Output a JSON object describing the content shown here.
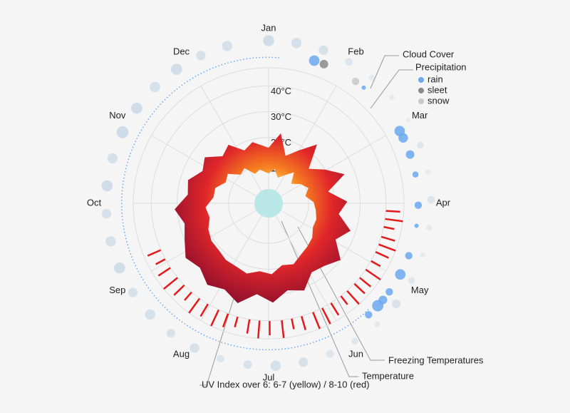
{
  "chart_data": {
    "type": "radial-weather",
    "categories": [
      "Jan",
      "Feb",
      "Mar",
      "Apr",
      "May",
      "Jun",
      "Jul",
      "Aug",
      "Sep",
      "Oct",
      "Nov",
      "Dec"
    ],
    "ylim": [
      0,
      47
    ],
    "yticks": [
      {
        "value": 10,
        "label": "10°C"
      },
      {
        "value": 20,
        "label": "20°C"
      },
      {
        "value": 30,
        "label": "30°C"
      },
      {
        "value": 40,
        "label": "40°C"
      }
    ],
    "grid": true,
    "temperature": {
      "name": "Temperature",
      "colors": [
        "#ffe066",
        "#f57c20",
        "#e0262a",
        "#8a0e2e"
      ],
      "days": [
        0,
        10,
        20,
        30,
        40,
        50,
        60,
        70,
        80,
        90,
        100,
        110,
        120,
        130,
        140,
        150,
        160,
        170,
        180,
        190,
        200,
        210,
        220,
        230,
        240,
        250,
        260,
        270,
        280,
        290,
        300,
        310,
        320,
        330,
        340,
        350
      ],
      "high": [
        16,
        22,
        14,
        18,
        24,
        15,
        20,
        26,
        18,
        25,
        22,
        28,
        24,
        30,
        27,
        26,
        31,
        29,
        33,
        30,
        35,
        32,
        34,
        31,
        33,
        30,
        28,
        31,
        26,
        27,
        23,
        25,
        20,
        22,
        17,
        19
      ],
      "low": [
        6,
        8,
        5,
        7,
        10,
        6,
        9,
        11,
        9,
        12,
        13,
        14,
        14,
        16,
        17,
        18,
        20,
        19,
        22,
        21,
        23,
        22,
        22,
        21,
        21,
        20,
        18,
        19,
        16,
        16,
        13,
        14,
        10,
        11,
        7,
        8
      ]
    },
    "cloud_cover": {
      "name": "Cloud Cover",
      "color": "#b8cde0",
      "days": [
        0,
        10,
        20,
        30,
        40,
        50,
        60,
        70,
        80,
        90,
        100,
        110,
        120,
        130,
        140,
        150,
        160,
        170,
        180,
        190,
        200,
        210,
        220,
        230,
        240,
        250,
        260,
        270,
        280,
        290,
        300,
        310,
        320,
        330,
        340,
        350
      ],
      "values": [
        80,
        70,
        60,
        40,
        20,
        10,
        5,
        30,
        15,
        40,
        20,
        10,
        30,
        50,
        20,
        30,
        40,
        60,
        70,
        50,
        40,
        60,
        50,
        70,
        60,
        80,
        70,
        60,
        80,
        70,
        90,
        80,
        70,
        80,
        60,
        70
      ]
    },
    "precipitation": {
      "name": "Precipitation",
      "legend": [
        {
          "name": "rain",
          "color": "#6aa8f0"
        },
        {
          "name": "sleet",
          "color": "#8a8a8a"
        },
        {
          "name": "snow",
          "color": "#c8c8c8"
        }
      ],
      "days": [
        18,
        22,
        36,
        40,
        62,
        65,
        72,
        80,
        92,
        100,
        112,
        120,
        128,
        132,
        135,
        140
      ],
      "amounts": [
        6,
        4,
        3,
        1,
        6,
        5,
        4,
        2,
        3,
        1,
        3,
        6,
        3,
        4,
        7,
        3
      ],
      "kinds": [
        0,
        1,
        2,
        0,
        0,
        0,
        0,
        0,
        0,
        0,
        0,
        0,
        0,
        0,
        0,
        0
      ]
    },
    "uv": {
      "name": "UV Index over 6: 6-7 (yellow) / 8-10 (red)",
      "color": "#e31a1c",
      "days": [
        95,
        99,
        103,
        108,
        112,
        116,
        121,
        126,
        131,
        135,
        140,
        144,
        150,
        155,
        160,
        166,
        171,
        176,
        182,
        187,
        192,
        198,
        203,
        208,
        214,
        219,
        224,
        229,
        234,
        240,
        245,
        250
      ],
      "values": [
        9,
        10,
        8,
        9,
        10,
        9,
        8,
        10,
        9,
        9,
        10,
        8,
        9,
        10,
        10,
        9,
        8,
        10,
        9,
        10,
        9,
        8,
        9,
        10,
        9,
        10,
        8,
        9,
        10,
        9,
        8,
        9
      ]
    },
    "freezing": {
      "name": "Freezing Temperatures"
    }
  }
}
